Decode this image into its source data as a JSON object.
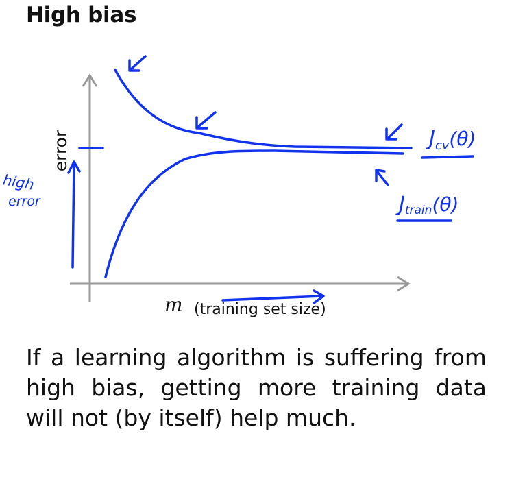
{
  "title": "High bias",
  "diagram": {
    "y_axis_label": "error",
    "x_axis_symbol": "m",
    "x_axis_label": "(training set size)",
    "annotations": {
      "high_error": [
        "high",
        "error"
      ],
      "j_cv": "J",
      "j_cv_sub": "cv",
      "j_cv_arg": "(θ)",
      "j_train": "J",
      "j_train_sub": "train",
      "j_train_arg": "(θ)"
    },
    "ink_color": "#1133ee",
    "axis_color": "#999999"
  },
  "body": "If a learning algorithm is suffering from high bias, getting more training data will not (by itself) help much."
}
